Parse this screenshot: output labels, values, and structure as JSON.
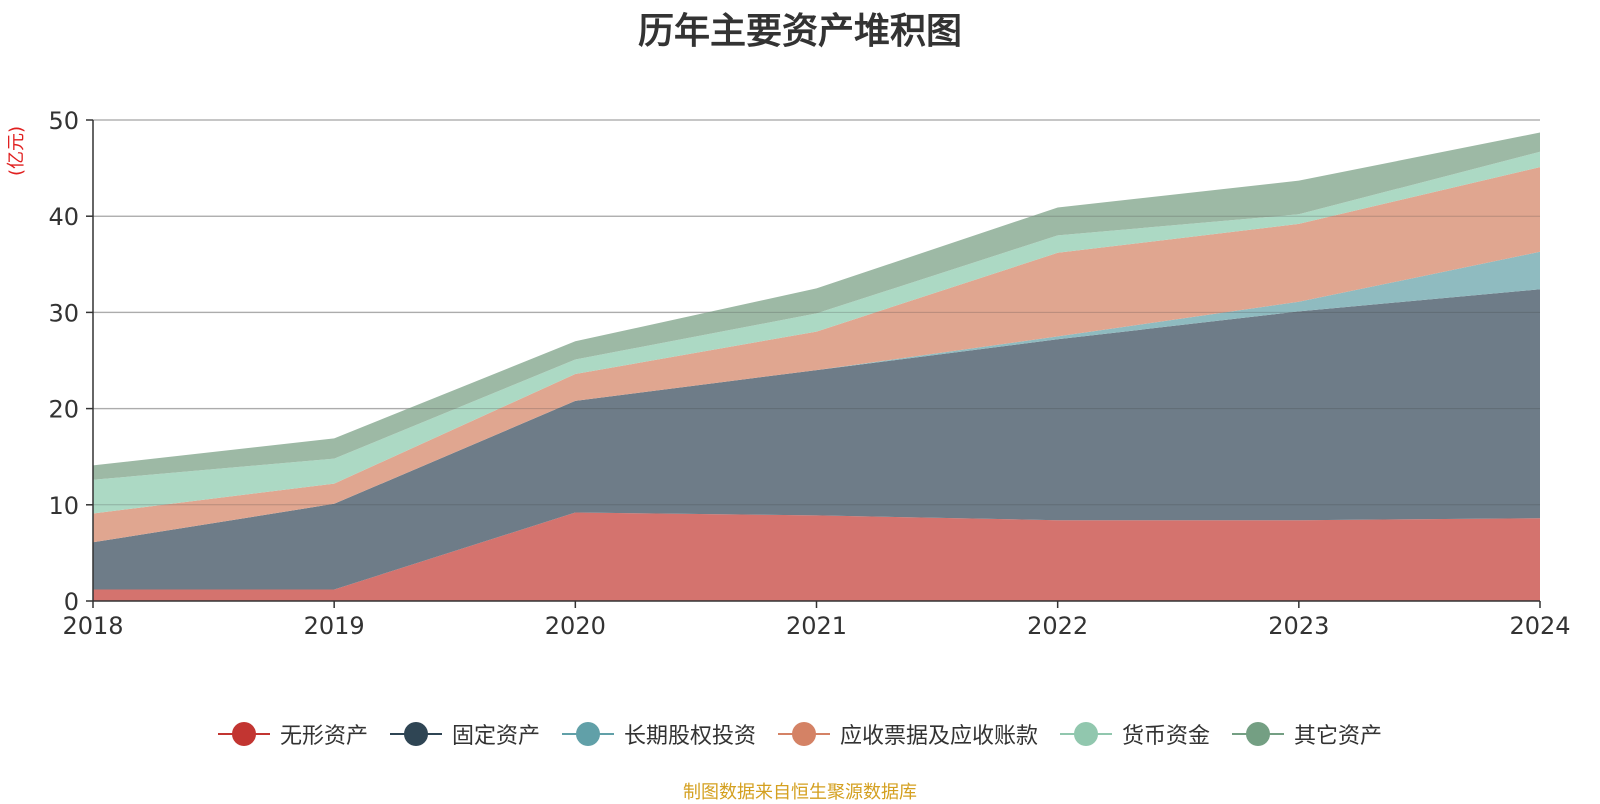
{
  "title": "历年主要资产堆积图",
  "source": "制图数据来自恒生聚源数据库",
  "chart_data": {
    "type": "area",
    "stacked": true,
    "title": "历年主要资产堆积图",
    "unit_label": "(亿元)",
    "categories": [
      "2018",
      "2019",
      "2020",
      "2021",
      "2022",
      "2023",
      "2024"
    ],
    "ylim": [
      0,
      50
    ],
    "yticks": [
      0,
      10,
      20,
      30,
      40,
      50
    ],
    "grid": true,
    "legend_position": "bottom",
    "series": [
      {
        "name": "无形资产",
        "color": "#c23531",
        "fill": "#d4736e",
        "values": [
          1.2,
          1.2,
          9.2,
          8.9,
          8.4,
          8.4,
          8.6
        ]
      },
      {
        "name": "固定资产",
        "color": "#2f4554",
        "fill": "#6e7c88",
        "values": [
          4.9,
          8.9,
          11.6,
          15.1,
          18.8,
          21.7,
          23.8
        ]
      },
      {
        "name": "长期股权投资",
        "color": "#61a0a8",
        "fill": "#8fbbc0",
        "values": [
          0.0,
          0.0,
          0.0,
          0.0,
          0.3,
          1.0,
          3.9
        ]
      },
      {
        "name": "应收票据及应收账款",
        "color": "#d48265",
        "fill": "#e0a690",
        "values": [
          3.0,
          2.1,
          2.8,
          4.0,
          8.7,
          8.1,
          8.8
        ]
      },
      {
        "name": "货币资金",
        "color": "#91c7ae",
        "fill": "#acd9c4",
        "values": [
          3.5,
          2.6,
          1.5,
          1.9,
          1.8,
          1.0,
          1.6
        ]
      },
      {
        "name": "其它资产",
        "color": "#749f83",
        "fill": "#9db9a5",
        "values": [
          1.5,
          2.1,
          1.9,
          2.6,
          2.9,
          3.5,
          2.0
        ]
      }
    ]
  }
}
